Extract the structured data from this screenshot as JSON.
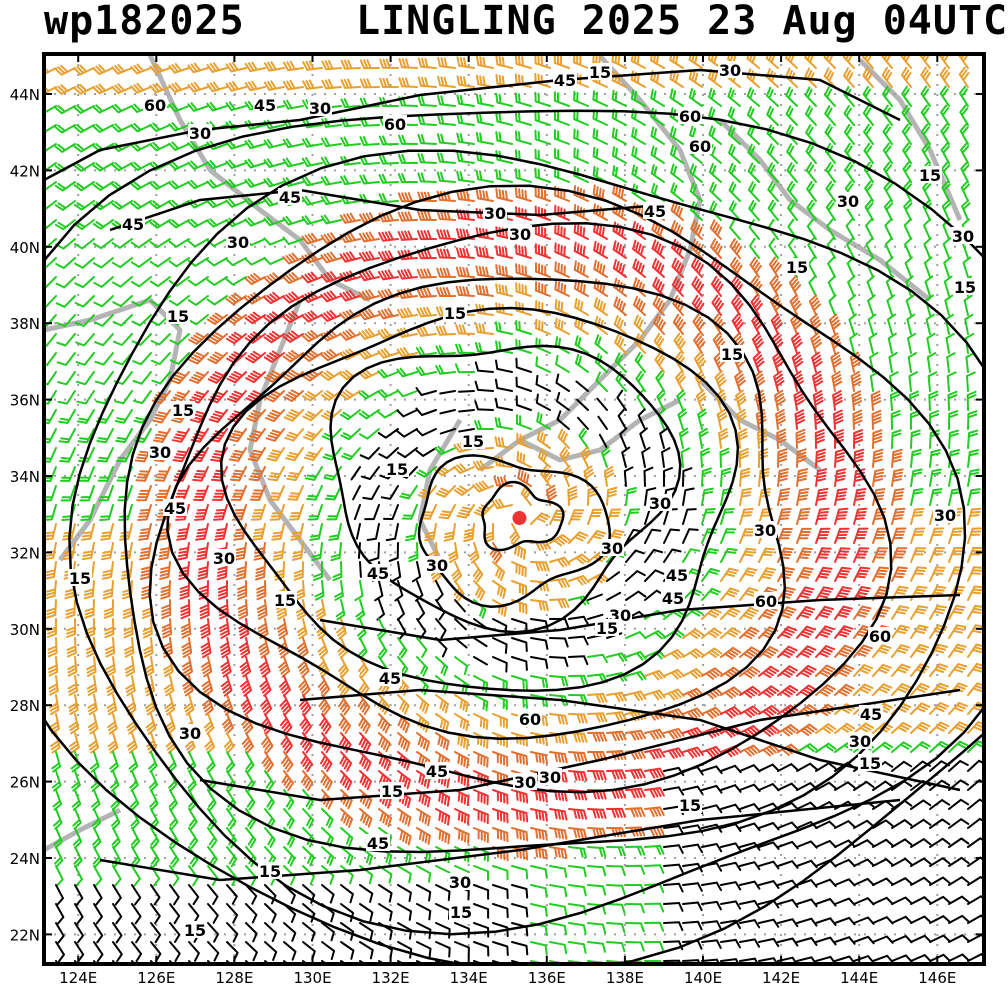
{
  "header": {
    "storm_id": "wp182025",
    "storm_info": "LINGLING 2025 23 Aug 04UTC"
  },
  "axes": {
    "lat_labels": [
      "44N",
      "42N",
      "40N",
      "38N",
      "36N",
      "34N",
      "32N",
      "30N",
      "28N",
      "26N",
      "24N",
      "22N"
    ],
    "lon_labels": [
      "124E",
      "126E",
      "128E",
      "130E",
      "132E",
      "134E",
      "136E",
      "138E",
      "140E",
      "142E",
      "144E",
      "146E"
    ]
  },
  "contour_labels": [
    "15",
    "30",
    "45",
    "60"
  ],
  "colors": {
    "barb_calm": "#000000",
    "barb_15_30kt": "#22cc22",
    "barb_30_45kt": "#e8a030",
    "barb_45_60kt": "#e07030",
    "barb_60plus": "#ee3333",
    "coastline": "#b4b4b4",
    "storm_center": "#ee3333"
  },
  "legend_semantics": "wind barbs colored by speed; black contours = isotachs (kt)"
}
